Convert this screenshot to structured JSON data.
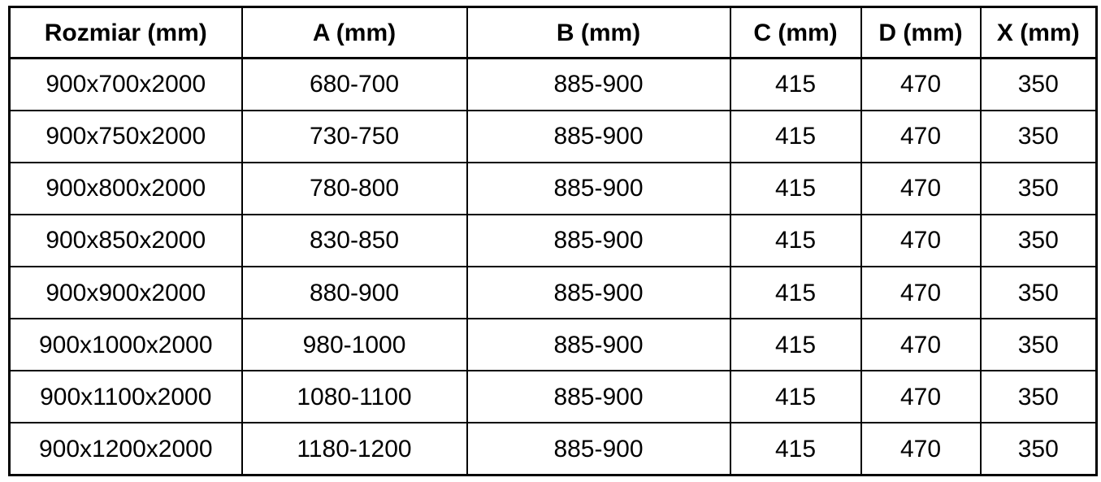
{
  "colors": {
    "background": "#ffffff",
    "border": "#000000",
    "text": "#000000"
  },
  "chart_data": {
    "type": "table",
    "title": "",
    "columns": [
      "Rozmiar (mm)",
      "A (mm)",
      "B (mm)",
      "C (mm)",
      "D (mm)",
      "X (mm)"
    ],
    "rows": [
      [
        "900x700x2000",
        "680-700",
        "885-900",
        "415",
        "470",
        "350"
      ],
      [
        "900x750x2000",
        "730-750",
        "885-900",
        "415",
        "470",
        "350"
      ],
      [
        "900x800x2000",
        "780-800",
        "885-900",
        "415",
        "470",
        "350"
      ],
      [
        "900x850x2000",
        "830-850",
        "885-900",
        "415",
        "470",
        "350"
      ],
      [
        "900x900x2000",
        "880-900",
        "885-900",
        "415",
        "470",
        "350"
      ],
      [
        "900x1000x2000",
        "980-1000",
        "885-900",
        "415",
        "470",
        "350"
      ],
      [
        "900x1100x2000",
        "1080-1100",
        "885-900",
        "415",
        "470",
        "350"
      ],
      [
        "900x1200x2000",
        "1180-1200",
        "885-900",
        "415",
        "470",
        "350"
      ]
    ]
  }
}
